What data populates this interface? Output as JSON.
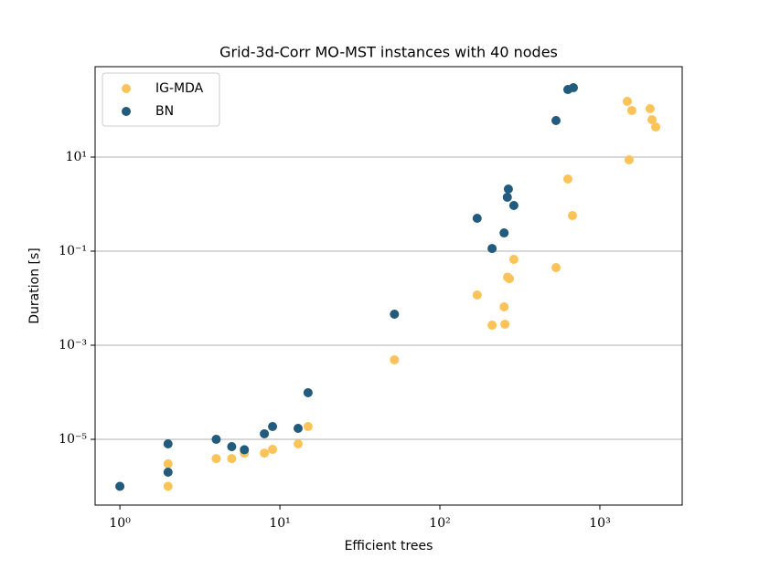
{
  "chart_data": {
    "type": "scatter",
    "title": "Grid-3d-Corr MO-MST instances with 40 nodes",
    "x_label": "Efficient trees",
    "y_label": "Duration [s]",
    "xscale": "log",
    "yscale": "log",
    "xlim": [
      0.7,
      3270
    ],
    "ylim": [
      4e-07,
      836
    ],
    "xticks": [
      {
        "value": 1,
        "label": "10⁰"
      },
      {
        "value": 10,
        "label": "10¹"
      },
      {
        "value": 100,
        "label": "10²"
      },
      {
        "value": 1000,
        "label": "10³"
      }
    ],
    "yticks": [
      {
        "value": 1e-05,
        "label": "10⁻⁵"
      },
      {
        "value": 0.001,
        "label": "10⁻³"
      },
      {
        "value": 0.1,
        "label": "10⁻¹"
      },
      {
        "value": 10,
        "label": "10¹"
      }
    ],
    "grid": "y",
    "legend": "upper left",
    "series": [
      {
        "name": "IG-MDA",
        "color": "#fcc458",
        "x": [
          1,
          2,
          2,
          4,
          5,
          6,
          8,
          9,
          13,
          15,
          52,
          171,
          212,
          255,
          252,
          265,
          272,
          290,
          532,
          631,
          674,
          1484,
          1585,
          1523,
          2061,
          2118,
          2233
        ],
        "values": [
          1e-06,
          3e-06,
          1e-06,
          3.9e-06,
          3.9e-06,
          5.1e-06,
          5.1e-06,
          6.1e-06,
          8e-06,
          1.87e-05,
          0.00049,
          0.0117,
          0.00267,
          0.0028,
          0.00654,
          0.028,
          0.026,
          0.0668,
          0.0447,
          3.42,
          0.571,
          153,
          98,
          8.75,
          107,
          62.5,
          43.7
        ]
      },
      {
        "name": "BN",
        "color": "#235b7e",
        "x": [
          1,
          2,
          2,
          4,
          5,
          6,
          8,
          9,
          13,
          15,
          52,
          171,
          212,
          252,
          268,
          264,
          290,
          532,
          631,
          683
        ],
        "values": [
          1e-06,
          8e-06,
          2e-06,
          1e-05,
          7e-06,
          6e-06,
          1.31e-05,
          1.87e-05,
          1.71e-05,
          9.8e-05,
          0.00457,
          0.5,
          0.114,
          0.244,
          2.09,
          1.4,
          0.935,
          59.8,
          273,
          299
        ]
      }
    ]
  }
}
